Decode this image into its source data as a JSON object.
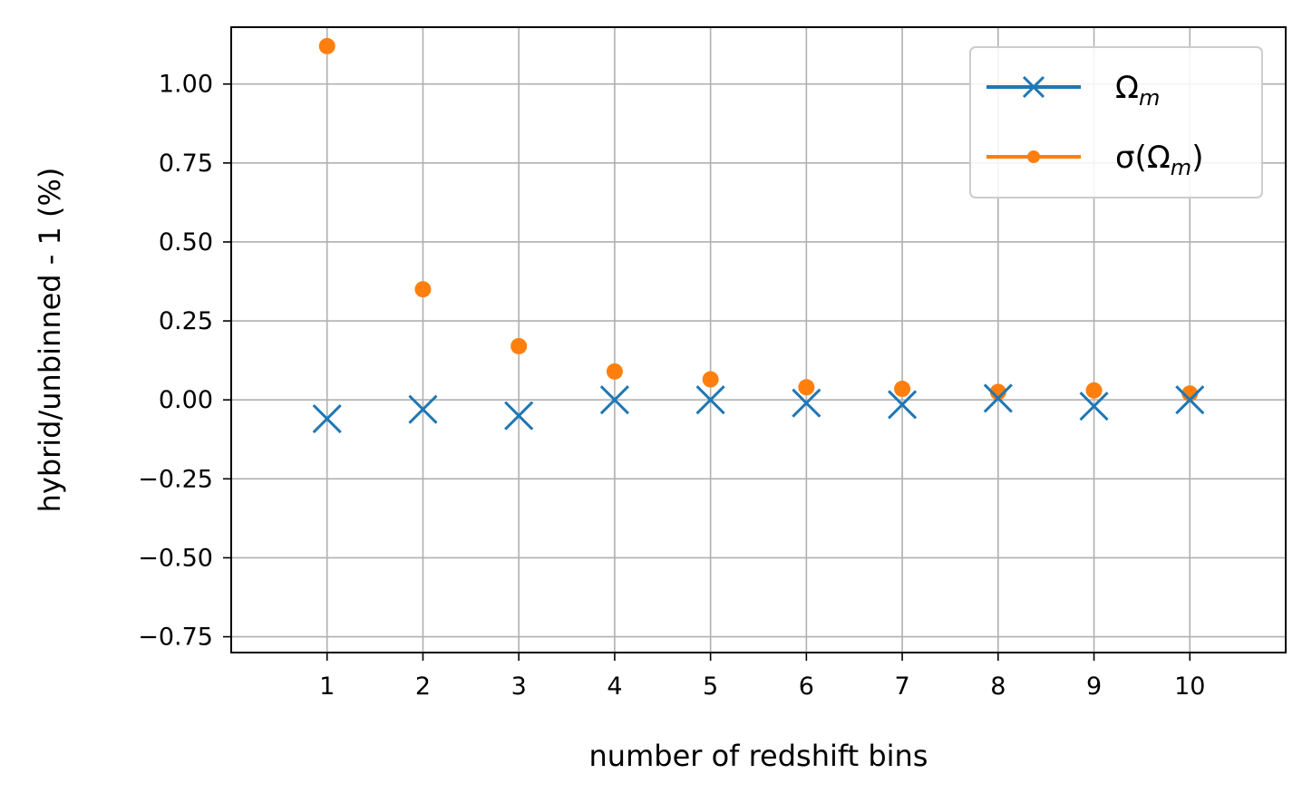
{
  "chart_data": {
    "type": "scatter",
    "title": "",
    "xlabel": "number of redshift bins",
    "ylabel": "hybrid/unbinned - 1 (%)",
    "x_ticks": [
      1,
      2,
      3,
      4,
      5,
      6,
      7,
      8,
      9,
      10
    ],
    "x_tick_labels": [
      "1",
      "2",
      "3",
      "4",
      "5",
      "6",
      "7",
      "8",
      "9",
      "10"
    ],
    "y_ticks": [
      -0.75,
      -0.5,
      -0.25,
      0.0,
      0.25,
      0.5,
      0.75,
      1.0
    ],
    "y_tick_labels": [
      "−0.75",
      "−0.50",
      "−0.25",
      "0.00",
      "0.25",
      "0.50",
      "0.75",
      "1.00"
    ],
    "xlim": [
      0,
      11
    ],
    "ylim": [
      -0.8,
      1.18
    ],
    "grid": true,
    "legend_position": "top-right",
    "series": [
      {
        "name": "Ωm",
        "legend_base": "Ω",
        "legend_sub": "m",
        "marker": "x",
        "color": "#1f77b4",
        "x": [
          1,
          2,
          3,
          4,
          5,
          6,
          7,
          8,
          9,
          10
        ],
        "y": [
          -0.06,
          -0.03,
          -0.05,
          0.0,
          0.0,
          -0.01,
          -0.015,
          0.005,
          -0.02,
          0.0
        ]
      },
      {
        "name": "σ(Ωm)",
        "legend_prefix": "σ(Ω",
        "legend_sub": "m",
        "legend_suffix": ")",
        "marker": "dot",
        "color": "#ff7f0e",
        "x": [
          1,
          2,
          3,
          4,
          5,
          6,
          7,
          8,
          9,
          10
        ],
        "y": [
          1.12,
          0.35,
          0.17,
          0.09,
          0.065,
          0.04,
          0.035,
          0.025,
          0.03,
          0.02
        ]
      }
    ]
  }
}
